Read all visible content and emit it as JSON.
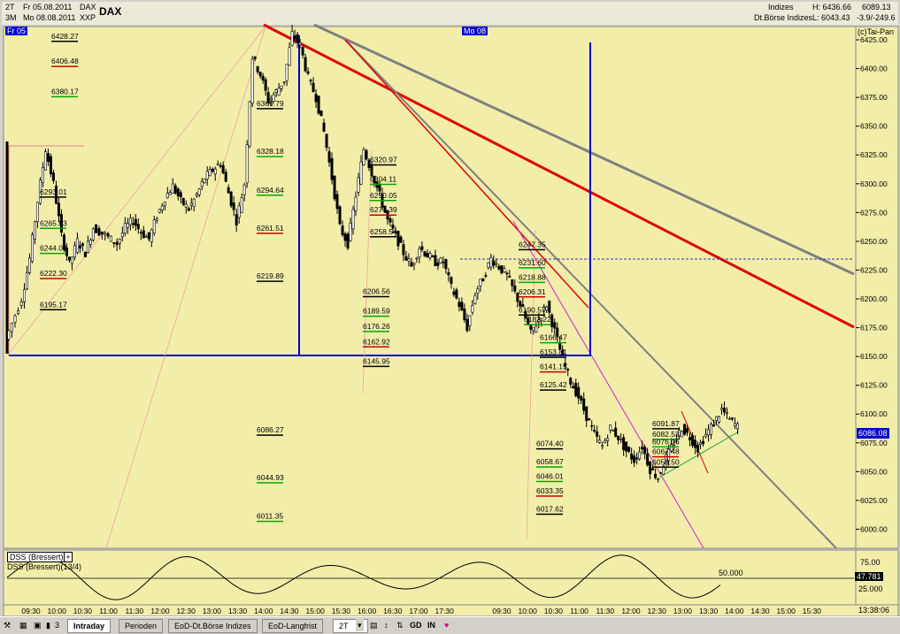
{
  "header": {
    "period_top": "2T",
    "period_bottom": "3M",
    "date1": "Fr 05.08.2011",
    "date2": "Mo 08.08.2011",
    "symbol": "DAX",
    "exchange": "XXP",
    "title": "DAX",
    "category": "Indizes",
    "subcategory": "Dt.Börse Indizes",
    "high": "H: 6436.66",
    "low": "L: 6043.43",
    "last": "6089.13",
    "change": "-3.9/-249.6",
    "copyright": "(c)Tai-Pan",
    "day_marker_1": "Fr 05",
    "day_marker_2": "Mo 08"
  },
  "chart_data": {
    "type": "candlestick",
    "ylim": [
      5985,
      6435
    ],
    "y_ticks": [
      "6425.00",
      "6400.00",
      "6375.00",
      "6350.00",
      "6325.00",
      "6300.00",
      "6275.00",
      "6250.00",
      "6225.00",
      "6200.00",
      "6175.00",
      "6150.00",
      "6125.00",
      "6100.00",
      "6075.00",
      "6050.00",
      "6025.00",
      "6000.00"
    ],
    "x_ticks": [
      "09:30",
      "10:00",
      "10:30",
      "11:00",
      "11:30",
      "12:00",
      "12:30",
      "13:00",
      "13:30",
      "14:00",
      "14:30",
      "15:00",
      "15:30",
      "16:00",
      "16:30",
      "17:00",
      "17:30",
      "09:30",
      "10:00",
      "10:30",
      "11:00",
      "11:30",
      "12:00",
      "12:30",
      "13:00",
      "13:30",
      "14:00",
      "14:30",
      "15:00",
      "15:30"
    ],
    "time_readout": "13:38:06",
    "last_price_label": "6086.08",
    "close_path": [
      [
        0,
        6165
      ],
      [
        4,
        6200
      ],
      [
        6,
        6235
      ],
      [
        8,
        6285
      ],
      [
        10,
        6330
      ],
      [
        12,
        6300
      ],
      [
        14,
        6255
      ],
      [
        16,
        6230
      ],
      [
        18,
        6250
      ],
      [
        20,
        6240
      ],
      [
        22,
        6262
      ],
      [
        25,
        6255
      ],
      [
        28,
        6248
      ],
      [
        30,
        6262
      ],
      [
        32,
        6268
      ],
      [
        34,
        6258
      ],
      [
        36,
        6252
      ],
      [
        38,
        6272
      ],
      [
        40,
        6288
      ],
      [
        42,
        6298
      ],
      [
        44,
        6285
      ],
      [
        46,
        6278
      ],
      [
        48,
        6290
      ],
      [
        50,
        6305
      ],
      [
        52,
        6312
      ],
      [
        54,
        6318
      ],
      [
        56,
        6292
      ],
      [
        58,
        6268
      ],
      [
        60,
        6300
      ],
      [
        62,
        6410
      ],
      [
        64,
        6395
      ],
      [
        66,
        6372
      ],
      [
        68,
        6380
      ],
      [
        70,
        6390
      ],
      [
        72,
        6430
      ],
      [
        74,
        6420
      ],
      [
        76,
        6392
      ],
      [
        78,
        6375
      ],
      [
        80,
        6345
      ],
      [
        82,
        6305
      ],
      [
        84,
        6262
      ],
      [
        86,
        6248
      ],
      [
        88,
        6290
      ],
      [
        90,
        6330
      ],
      [
        92,
        6310
      ],
      [
        94,
        6290
      ],
      [
        96,
        6268
      ],
      [
        98,
        6255
      ],
      [
        100,
        6240
      ],
      [
        102,
        6228
      ],
      [
        104,
        6245
      ],
      [
        106,
        6238
      ],
      [
        108,
        6232
      ],
      [
        110,
        6232
      ],
      [
        112,
        6210
      ],
      [
        114,
        6195
      ],
      [
        116,
        6175
      ],
      [
        118,
        6205
      ],
      [
        120,
        6218
      ],
      [
        122,
        6235
      ],
      [
        124,
        6228
      ],
      [
        126,
        6220
      ],
      [
        128,
        6205
      ],
      [
        130,
        6190
      ],
      [
        132,
        6170
      ],
      [
        134,
        6182
      ],
      [
        136,
        6195
      ],
      [
        138,
        6172
      ],
      [
        140,
        6148
      ],
      [
        142,
        6128
      ],
      [
        144,
        6115
      ],
      [
        146,
        6098
      ],
      [
        148,
        6082
      ],
      [
        150,
        6072
      ],
      [
        152,
        6088
      ],
      [
        154,
        6080
      ],
      [
        156,
        6068
      ],
      [
        158,
        6060
      ],
      [
        160,
        6072
      ],
      [
        162,
        6052
      ],
      [
        164,
        6045
      ],
      [
        166,
        6062
      ],
      [
        168,
        6075
      ],
      [
        170,
        6088
      ],
      [
        172,
        6080
      ],
      [
        174,
        6070
      ],
      [
        176,
        6082
      ],
      [
        178,
        6092
      ],
      [
        180,
        6104
      ],
      [
        182,
        6095
      ],
      [
        184,
        6089
      ]
    ],
    "price_labels": [
      {
        "v": 6428.27,
        "t": "6428.27",
        "c": "#000"
      },
      {
        "v": 6406.48,
        "t": "6406.48",
        "c": "#c00"
      },
      {
        "v": 6380.17,
        "t": "6380.17",
        "c": "#0a0"
      },
      {
        "v": 6293.01,
        "t": "6293.01",
        "c": "#000"
      },
      {
        "v": 6265.83,
        "t": "6265.83",
        "c": "#0a0"
      },
      {
        "v": 6244.09,
        "t": "6244.09",
        "c": "#0a0"
      },
      {
        "v": 6222.3,
        "t": "6222.30",
        "c": "#c00"
      },
      {
        "v": 6195.17,
        "t": "6195.17",
        "c": "#000"
      },
      {
        "v": 6369.79,
        "t": "6369.79",
        "c": "#000"
      },
      {
        "v": 6328.18,
        "t": "6328.18",
        "c": "#0a0"
      },
      {
        "v": 6294.64,
        "t": "6294.64",
        "c": "#0a0"
      },
      {
        "v": 6261.51,
        "t": "6261.51",
        "c": "#c00"
      },
      {
        "v": 6219.89,
        "t": "6219.89",
        "c": "#000"
      },
      {
        "v": 6086.27,
        "t": "6086.27",
        "c": "#000"
      },
      {
        "v": 6044.93,
        "t": "6044.93",
        "c": "#0a0"
      },
      {
        "v": 6011.35,
        "t": "6011.35",
        "c": "#0a0"
      },
      {
        "v": 6320.97,
        "t": "6320.97",
        "c": "#000"
      },
      {
        "v": 6304.11,
        "t": "6304.11",
        "c": "#0a0"
      },
      {
        "v": 6290.05,
        "t": "6290.05",
        "c": "#0a0"
      },
      {
        "v": 6277.39,
        "t": "6277.39",
        "c": "#c00"
      },
      {
        "v": 6258.54,
        "t": "6258.54",
        "c": "#000"
      },
      {
        "v": 6206.56,
        "t": "6206.56",
        "c": "#000"
      },
      {
        "v": 6189.59,
        "t": "6189.59",
        "c": "#0a0"
      },
      {
        "v": 6176.26,
        "t": "6176.26",
        "c": "#0a0"
      },
      {
        "v": 6162.92,
        "t": "6162.92",
        "c": "#c00"
      },
      {
        "v": 6145.95,
        "t": "6145.95",
        "c": "#000"
      },
      {
        "v": 6247.35,
        "t": "6247.35",
        "c": "#000"
      },
      {
        "v": 6231.6,
        "t": "6231.60",
        "c": "#0a0"
      },
      {
        "v": 6218.88,
        "t": "6218.88",
        "c": "#0a0"
      },
      {
        "v": 6206.31,
        "t": "6206.31",
        "c": "#c00"
      },
      {
        "v": 6190.57,
        "t": "6190.57",
        "c": "#000"
      },
      {
        "v": 6182.22,
        "t": "6182.22",
        "c": "#0a0"
      },
      {
        "v": 6166.47,
        "t": "6166.47",
        "c": "#0a0"
      },
      {
        "v": 6153.81,
        "t": "6153.81",
        "c": "#000"
      },
      {
        "v": 6141.15,
        "t": "6141.15",
        "c": "#c00"
      },
      {
        "v": 6125.42,
        "t": "6125.42",
        "c": "#000"
      },
      {
        "v": 6074.4,
        "t": "6074.40",
        "c": "#000"
      },
      {
        "v": 6058.67,
        "t": "6058.67",
        "c": "#0a0"
      },
      {
        "v": 6046.01,
        "t": "6046.01",
        "c": "#0a0"
      },
      {
        "v": 6033.35,
        "t": "6033.35",
        "c": "#c00"
      },
      {
        "v": 6017.62,
        "t": "6017.62",
        "c": "#000"
      },
      {
        "v": 6091.87,
        "t": "6091.87",
        "c": "#000"
      },
      {
        "v": 6082.53,
        "t": "6082.53",
        "c": "#0a0"
      },
      {
        "v": 6076.06,
        "t": "6076.06",
        "c": "#0a0"
      },
      {
        "v": 6067.48,
        "t": "6067.48",
        "c": "#c00"
      },
      {
        "v": 6058.5,
        "t": "6058.50",
        "c": "#000"
      }
    ],
    "indicator": {
      "title": "DSS (Bressert)",
      "subtitle": "DSS (Bressert)(13/4)",
      "ticks": [
        "75.00",
        "50.000",
        "25.000"
      ],
      "last_value": "47.781",
      "ylim": [
        0,
        100
      ]
    },
    "colors": {
      "background": "#f2eeaa",
      "candle": "#000000",
      "trend_red": "#e00000",
      "trend_gray": "#808080",
      "box_blue": "#0000cc",
      "fib_pink": "#f08080"
    }
  },
  "toolbar": {
    "icons": [
      "wrench-icon",
      "grid-icon",
      "calendar-icon",
      "bars-icon"
    ],
    "number": "3",
    "tabs": [
      "Intraday",
      "Perioden",
      "EoD-Dt.Börse Indizes",
      "EoD-Langfrist"
    ],
    "period_select": "2T",
    "btn_gd": "GD",
    "btn_in": "IN"
  }
}
